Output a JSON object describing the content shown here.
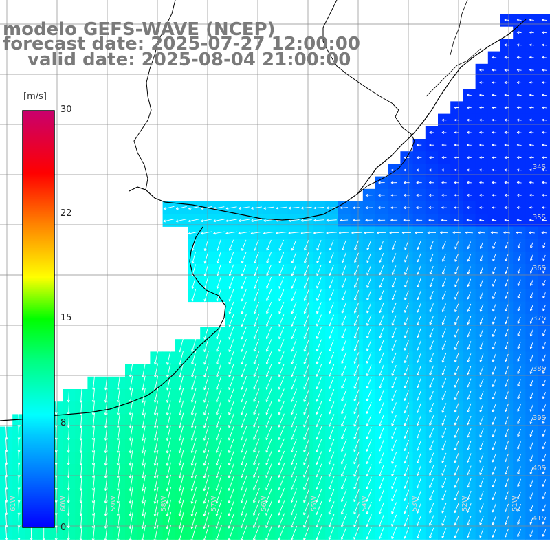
{
  "title": {
    "line1": "modelo GEFS-WAVE (NCEP)",
    "line2": "forecast date: 2025-07-27 12:00:00",
    "line3": "valid date: 2025-08-04 21:00:00"
  },
  "colorbar": {
    "unit": "[m/s]",
    "ticks": [
      "30",
      "22",
      "15",
      "8",
      "0"
    ],
    "colors": [
      "#0000ff",
      "#00bfff",
      "#00ffff",
      "#00ff00",
      "#ffff00",
      "#ff8000",
      "#ff0000",
      "#c8006e"
    ]
  },
  "lat_labels": [
    "34S",
    "35S",
    "36S",
    "37S",
    "38S",
    "39S",
    "40S",
    "41S"
  ],
  "lon_labels": [
    "61W",
    "60W",
    "59W",
    "58W",
    "57W",
    "56W",
    "55W",
    "54W",
    "53W",
    "52W",
    "51W"
  ],
  "colors": {
    "land": "#ffffff",
    "coast": "#000000",
    "grid": "#8a8a8a",
    "arrow": "#ffffff"
  }
}
